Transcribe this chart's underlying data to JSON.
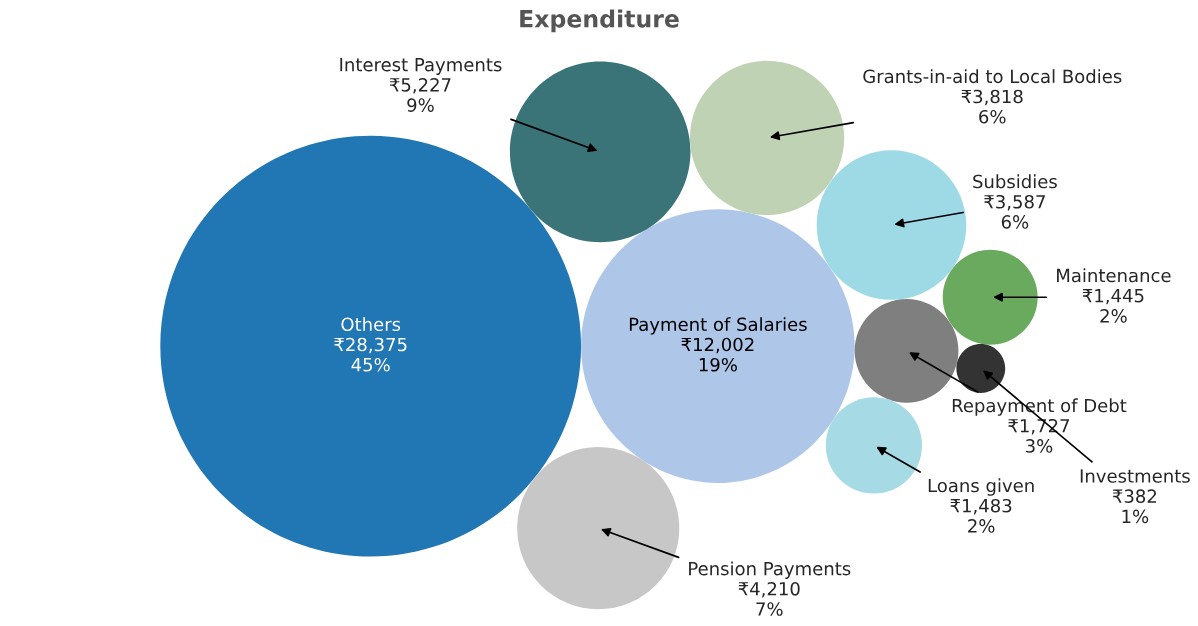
{
  "chart_data": {
    "type": "other",
    "title": "Expenditure",
    "categories": [
      "Others",
      "Payment of Salaries",
      "Interest Payments",
      "Pension Payments",
      "Grants-in-aid to Local Bodies",
      "Subsidies",
      "Repayment of Debt",
      "Loans given",
      "Maintenance",
      "Investments"
    ],
    "values": [
      28375,
      12002,
      5227,
      4210,
      3818,
      3587,
      1727,
      1483,
      1445,
      382
    ],
    "value_labels": [
      "₹28,375\n45%",
      "₹12,002\n19%",
      "₹5,227\n9%",
      "₹4,210\n7%",
      "₹3,818\n6%",
      "₹3,587\n6%",
      "₹1,727\n3%",
      "₹1,483\n2%",
      "₹1,445\n2%",
      "₹382\n1%"
    ],
    "colors": [
      "#2176b4",
      "#aec7e8",
      "#3a7478",
      "#c7c7c7",
      "#c0d2b4",
      "#9edae5",
      "#7f7f7f",
      "#a6dbe6",
      "#6aaa5e",
      "#333333"
    ]
  }
}
